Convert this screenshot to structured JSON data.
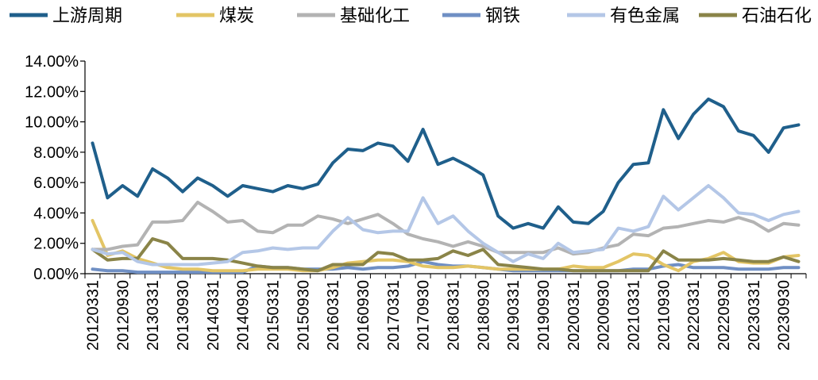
{
  "chart_data": {
    "type": "line",
    "title": "",
    "xlabel": "",
    "ylabel": "",
    "ylim": [
      0,
      14
    ],
    "y_ticks": [
      "0.00%",
      "2.00%",
      "4.00%",
      "6.00%",
      "8.00%",
      "10.00%",
      "12.00%",
      "14.00%"
    ],
    "x": [
      "20120331",
      "20120630",
      "20120930",
      "20121231",
      "20130331",
      "20130630",
      "20130930",
      "20131231",
      "20140331",
      "20140630",
      "20140930",
      "20141231",
      "20150331",
      "20150630",
      "20150930",
      "20151231",
      "20160331",
      "20160630",
      "20160930",
      "20161231",
      "20170331",
      "20170630",
      "20170930",
      "20171231",
      "20180331",
      "20180630",
      "20180930",
      "20181231",
      "20190331",
      "20190630",
      "20190930",
      "20191231",
      "20200331",
      "20200630",
      "20200930",
      "20201231",
      "20210331",
      "20210630",
      "20210930",
      "20211231",
      "20220331",
      "20220630",
      "20220930",
      "20221231",
      "20230331",
      "20230630",
      "20230930",
      "20231231"
    ],
    "x_tick_labels": [
      "20120331",
      "20120930",
      "20130331",
      "20130930",
      "20140331",
      "20140930",
      "20150331",
      "20150930",
      "20160331",
      "20160930",
      "20170331",
      "20170930",
      "20180331",
      "20180930",
      "20190331",
      "20190930",
      "20200331",
      "20200930",
      "20210331",
      "20210930",
      "20220331",
      "20220930",
      "20230331",
      "20230930"
    ],
    "grid": false,
    "legend_position": "top",
    "series": [
      {
        "name": "上游周期",
        "color": "#1f5f8b",
        "values": [
          8.6,
          5.0,
          5.8,
          5.1,
          6.9,
          6.3,
          5.4,
          6.3,
          5.8,
          5.1,
          5.8,
          5.6,
          5.4,
          5.8,
          5.6,
          5.9,
          7.3,
          8.2,
          8.1,
          8.6,
          8.4,
          7.4,
          9.5,
          7.2,
          7.6,
          7.1,
          6.5,
          3.8,
          3.0,
          3.3,
          3.0,
          4.4,
          3.4,
          3.3,
          4.1,
          6.0,
          7.2,
          7.3,
          10.8,
          8.9,
          10.5,
          11.5,
          11.0,
          9.4,
          9.1,
          8.0,
          9.6,
          9.8
        ]
      },
      {
        "name": "煤炭",
        "color": "#e3c565",
        "values": [
          3.5,
          1.2,
          1.5,
          1.0,
          0.7,
          0.4,
          0.3,
          0.3,
          0.2,
          0.2,
          0.2,
          0.3,
          0.3,
          0.3,
          0.2,
          0.2,
          0.4,
          0.7,
          0.8,
          0.9,
          0.9,
          0.8,
          0.5,
          0.4,
          0.4,
          0.5,
          0.4,
          0.3,
          0.3,
          0.3,
          0.3,
          0.3,
          0.5,
          0.4,
          0.4,
          0.8,
          1.3,
          1.2,
          0.6,
          0.2,
          0.8,
          1.0,
          1.4,
          0.8,
          0.7,
          0.7,
          1.1,
          1.2
        ]
      },
      {
        "name": "基础化工",
        "color": "#b3b3b3",
        "values": [
          1.6,
          1.6,
          1.8,
          1.9,
          3.4,
          3.4,
          3.5,
          4.7,
          4.1,
          3.4,
          3.5,
          2.8,
          2.7,
          3.2,
          3.2,
          3.8,
          3.6,
          3.3,
          3.6,
          3.9,
          3.3,
          2.6,
          2.3,
          2.1,
          1.8,
          2.1,
          1.8,
          1.4,
          1.4,
          1.4,
          1.4,
          1.7,
          1.3,
          1.4,
          1.7,
          1.9,
          2.6,
          2.5,
          3.0,
          3.1,
          3.3,
          3.5,
          3.4,
          3.7,
          3.4,
          2.8,
          3.3,
          3.2
        ]
      },
      {
        "name": "钢铁",
        "color": "#6f8fc4",
        "values": [
          0.3,
          0.2,
          0.2,
          0.1,
          0.1,
          0.1,
          0.1,
          0.1,
          0.1,
          0.1,
          0.1,
          0.5,
          0.4,
          0.4,
          0.3,
          0.3,
          0.3,
          0.4,
          0.3,
          0.4,
          0.4,
          0.5,
          0.8,
          0.6,
          0.5,
          0.5,
          0.4,
          0.3,
          0.2,
          0.2,
          0.2,
          0.2,
          0.2,
          0.2,
          0.2,
          0.2,
          0.3,
          0.3,
          0.5,
          0.6,
          0.4,
          0.4,
          0.4,
          0.3,
          0.3,
          0.3,
          0.4,
          0.4
        ]
      },
      {
        "name": "有色金属",
        "color": "#b4c7e7",
        "values": [
          1.6,
          1.3,
          1.4,
          0.8,
          0.6,
          0.6,
          0.6,
          0.6,
          0.7,
          0.8,
          1.4,
          1.5,
          1.7,
          1.6,
          1.7,
          1.7,
          2.8,
          3.7,
          2.9,
          2.7,
          2.8,
          2.8,
          5.0,
          3.3,
          3.8,
          2.8,
          2.0,
          1.4,
          0.8,
          1.3,
          1.0,
          2.0,
          1.4,
          1.5,
          1.6,
          3.0,
          2.8,
          3.1,
          5.1,
          4.2,
          5.0,
          5.8,
          5.0,
          4.0,
          3.9,
          3.5,
          3.9,
          4.1
        ]
      },
      {
        "name": "石油石化",
        "color": "#8a8448",
        "values": [
          1.6,
          0.9,
          1.0,
          1.0,
          2.3,
          2.0,
          1.0,
          1.0,
          1.0,
          0.9,
          0.7,
          0.5,
          0.4,
          0.4,
          0.3,
          0.2,
          0.6,
          0.6,
          0.6,
          1.4,
          1.3,
          0.9,
          0.9,
          1.0,
          1.5,
          1.2,
          1.6,
          0.6,
          0.5,
          0.4,
          0.3,
          0.3,
          0.2,
          0.2,
          0.2,
          0.2,
          0.2,
          0.2,
          1.5,
          0.9,
          0.9,
          0.9,
          1.0,
          0.9,
          0.8,
          0.8,
          1.1,
          0.8
        ]
      }
    ]
  }
}
